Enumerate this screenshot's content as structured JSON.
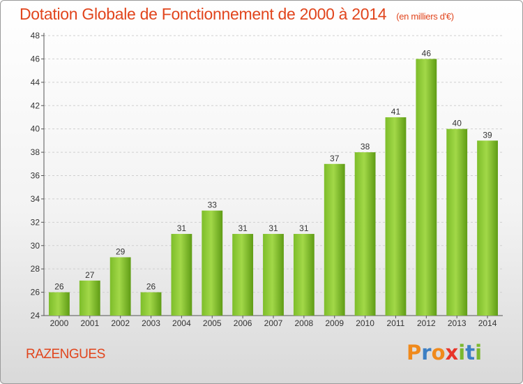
{
  "chart_data": {
    "type": "bar",
    "title": "Dotation Globale de Fonctionnement de 2000 à 2014",
    "subtitle": "(en milliers d'€)",
    "categories": [
      "2000",
      "2001",
      "2002",
      "2003",
      "2004",
      "2005",
      "2006",
      "2007",
      "2008",
      "2009",
      "2010",
      "2011",
      "2012",
      "2013",
      "2014"
    ],
    "values": [
      26,
      27,
      29,
      26,
      31,
      33,
      31,
      31,
      31,
      37,
      38,
      41,
      46,
      40,
      39
    ],
    "ylim": [
      24,
      48
    ],
    "yticks": [
      24,
      26,
      28,
      30,
      32,
      34,
      36,
      38,
      40,
      42,
      44,
      46,
      48
    ],
    "grid": true,
    "bar_color": "#7dbd2a",
    "bar_color_light": "#a2d848",
    "bar_color_dark": "#5f9c15"
  },
  "footer": {
    "commune": "RAZENGUES",
    "logo": "Proxiti",
    "logo_colors": [
      "#f08a1c",
      "#3c7fc4",
      "#f08a1c",
      "#e8352a",
      "#7bb82e",
      "#3c7fc4",
      "#7bb82e"
    ]
  },
  "colors": {
    "title": "#e1451d"
  }
}
